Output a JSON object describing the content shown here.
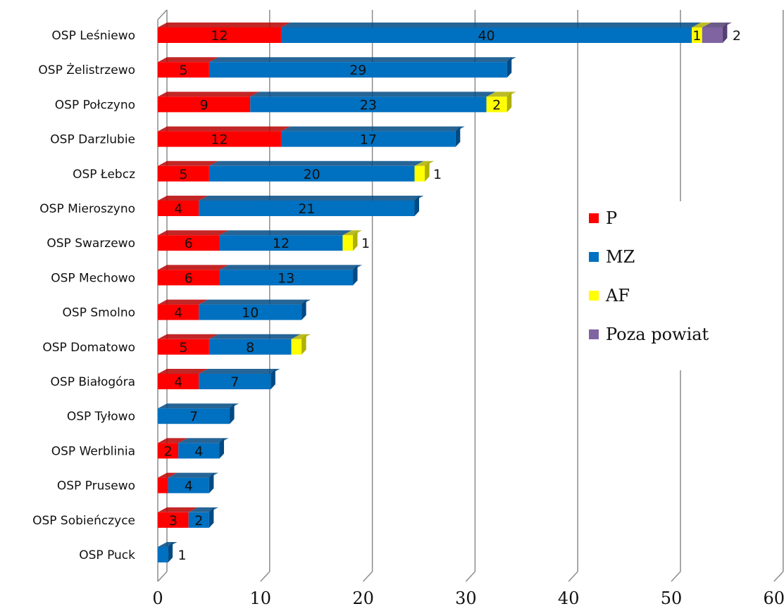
{
  "chart_data": {
    "type": "bar",
    "orientation": "horizontal",
    "stacked": true,
    "categories": [
      "OSP Leśniewo",
      "OSP Żelistrzewo",
      "OSP Połczyno",
      "OSP Darzlubie",
      "OSP Łebcz",
      "OSP Mieroszyno",
      "OSP Swarzewo",
      "OSP Mechowo",
      "OSP Smolno",
      "OSP Domatowo",
      "OSP Białogóra",
      "OSP Tyłowo",
      "OSP Werblinia",
      "OSP Prusewo",
      "OSP Sobieńczyce",
      "OSP Puck"
    ],
    "series": [
      {
        "name": "P",
        "color": "#ff0000",
        "side_color": "#b80000",
        "values": [
          12,
          5,
          9,
          12,
          5,
          4,
          6,
          6,
          4,
          5,
          4,
          0,
          2,
          1,
          3,
          0
        ],
        "labels": [
          "12",
          "5",
          "9",
          "12",
          "5",
          "4",
          "6",
          "6",
          "4",
          "5",
          "4",
          "",
          "2",
          "",
          "3",
          ""
        ]
      },
      {
        "name": "MZ",
        "color": "#0070c0",
        "side_color": "#004a84",
        "values": [
          40,
          29,
          23,
          17,
          20,
          21,
          12,
          13,
          10,
          8,
          7,
          7,
          4,
          4,
          2,
          1
        ],
        "labels": [
          "40",
          "29",
          "23",
          "17",
          "20",
          "21",
          "12",
          "13",
          "10",
          "8",
          "7",
          "7",
          "4",
          "4",
          "2",
          "1"
        ]
      },
      {
        "name": "AF",
        "color": "#ffff00",
        "side_color": "#b0b000",
        "values": [
          1,
          0,
          2,
          0,
          1,
          0,
          1,
          0,
          0,
          1,
          0,
          0,
          0,
          0,
          0,
          0
        ],
        "labels": [
          "1",
          "",
          "2",
          "",
          "1",
          "",
          "1",
          "",
          "",
          "",
          "",
          "",
          "",
          "",
          "",
          ""
        ]
      },
      {
        "name": "Poza powiat",
        "color": "#8064a2",
        "side_color": "#553f73",
        "values": [
          2,
          0,
          0,
          0,
          0,
          0,
          0,
          0,
          0,
          0,
          0,
          0,
          0,
          0,
          0,
          0
        ],
        "labels": [
          "2",
          "",
          "",
          "",
          "",
          "",
          "",
          "",
          "",
          "",
          "",
          "",
          "",
          "",
          "",
          ""
        ]
      }
    ],
    "xlim": [
      0,
      60
    ],
    "xticks": [
      "0",
      "10",
      "20",
      "30",
      "40",
      "50",
      "60"
    ],
    "grid": true,
    "legend": "right"
  }
}
